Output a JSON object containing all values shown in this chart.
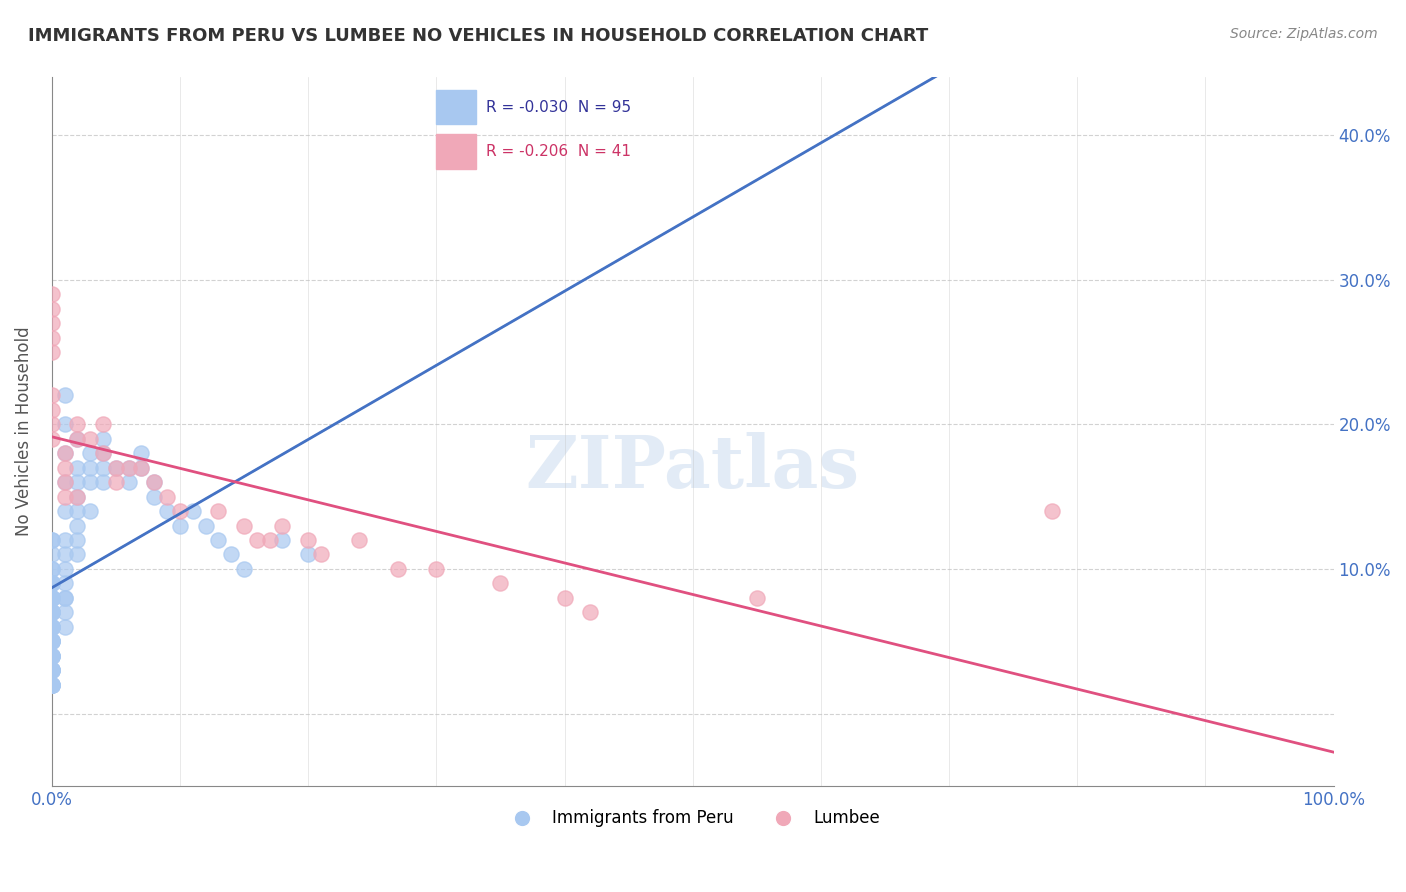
{
  "title": "IMMIGRANTS FROM PERU VS LUMBEE NO VEHICLES IN HOUSEHOLD CORRELATION CHART",
  "source": "Source: ZipAtlas.com",
  "ylabel": "No Vehicles in Household",
  "xlabel": "",
  "xlim": [
    0.0,
    1.0
  ],
  "ylim": [
    -0.05,
    0.44
  ],
  "yticks": [
    0.0,
    0.1,
    0.2,
    0.3,
    0.4
  ],
  "ytick_labels": [
    "",
    "10.0%",
    "20.0%",
    "30.0%",
    "40.0%"
  ],
  "xticks": [
    0.0,
    0.1,
    0.2,
    0.3,
    0.4,
    0.5,
    0.6,
    0.7,
    0.8,
    0.9,
    1.0
  ],
  "xtick_labels": [
    "0.0%",
    "",
    "",
    "",
    "",
    "",
    "",
    "",
    "",
    "",
    "100.0%"
  ],
  "legend_r1": "R = -0.030  N = 95",
  "legend_r2": "R = -0.206  N = 41",
  "series1_color": "#a8c8f0",
  "series2_color": "#f0a8b8",
  "series1_label": "Immigrants from Peru",
  "series2_label": "Lumbee",
  "trendline1_color": "#4472c4",
  "trendline2_color": "#e05080",
  "trendline1_dashed_color": "#a0c0e8",
  "background_color": "#ffffff",
  "watermark": "ZIPatlas",
  "peru_x": [
    0.0,
    0.0,
    0.0,
    0.0,
    0.0,
    0.0,
    0.0,
    0.0,
    0.0,
    0.0,
    0.0,
    0.0,
    0.0,
    0.0,
    0.0,
    0.0,
    0.0,
    0.0,
    0.0,
    0.0,
    0.0,
    0.0,
    0.0,
    0.0,
    0.0,
    0.0,
    0.0,
    0.0,
    0.0,
    0.0,
    0.0,
    0.0,
    0.0,
    0.0,
    0.0,
    0.0,
    0.0,
    0.0,
    0.0,
    0.0,
    0.0,
    0.0,
    0.0,
    0.0,
    0.0,
    0.0,
    0.0,
    0.0,
    0.0,
    0.0,
    0.01,
    0.01,
    0.01,
    0.01,
    0.01,
    0.01,
    0.01,
    0.01,
    0.01,
    0.01,
    0.01,
    0.01,
    0.01,
    0.02,
    0.02,
    0.02,
    0.02,
    0.02,
    0.02,
    0.02,
    0.02,
    0.03,
    0.03,
    0.03,
    0.03,
    0.04,
    0.04,
    0.04,
    0.04,
    0.05,
    0.06,
    0.06,
    0.07,
    0.07,
    0.08,
    0.08,
    0.09,
    0.1,
    0.11,
    0.12,
    0.13,
    0.14,
    0.15,
    0.18,
    0.2
  ],
  "peru_y": [
    0.12,
    0.12,
    0.11,
    0.1,
    0.1,
    0.09,
    0.09,
    0.09,
    0.09,
    0.09,
    0.08,
    0.08,
    0.08,
    0.08,
    0.08,
    0.08,
    0.08,
    0.07,
    0.07,
    0.07,
    0.07,
    0.07,
    0.07,
    0.06,
    0.06,
    0.06,
    0.06,
    0.06,
    0.05,
    0.05,
    0.05,
    0.05,
    0.05,
    0.04,
    0.04,
    0.04,
    0.04,
    0.04,
    0.03,
    0.03,
    0.03,
    0.03,
    0.03,
    0.03,
    0.02,
    0.02,
    0.02,
    0.02,
    0.02,
    0.02,
    0.22,
    0.2,
    0.18,
    0.16,
    0.14,
    0.12,
    0.11,
    0.1,
    0.09,
    0.08,
    0.08,
    0.07,
    0.06,
    0.19,
    0.17,
    0.16,
    0.15,
    0.14,
    0.13,
    0.12,
    0.11,
    0.18,
    0.17,
    0.16,
    0.14,
    0.19,
    0.18,
    0.17,
    0.16,
    0.17,
    0.17,
    0.16,
    0.18,
    0.17,
    0.16,
    0.15,
    0.14,
    0.13,
    0.14,
    0.13,
    0.12,
    0.11,
    0.1,
    0.12,
    0.11
  ],
  "lumbee_x": [
    0.0,
    0.0,
    0.0,
    0.0,
    0.0,
    0.0,
    0.0,
    0.0,
    0.0,
    0.01,
    0.01,
    0.01,
    0.01,
    0.02,
    0.02,
    0.02,
    0.03,
    0.04,
    0.04,
    0.05,
    0.05,
    0.06,
    0.07,
    0.08,
    0.09,
    0.1,
    0.13,
    0.15,
    0.16,
    0.17,
    0.18,
    0.2,
    0.21,
    0.24,
    0.27,
    0.3,
    0.35,
    0.4,
    0.42,
    0.55,
    0.78
  ],
  "lumbee_y": [
    0.29,
    0.28,
    0.27,
    0.26,
    0.25,
    0.22,
    0.21,
    0.2,
    0.19,
    0.18,
    0.17,
    0.16,
    0.15,
    0.2,
    0.19,
    0.15,
    0.19,
    0.2,
    0.18,
    0.17,
    0.16,
    0.17,
    0.17,
    0.16,
    0.15,
    0.14,
    0.14,
    0.13,
    0.12,
    0.12,
    0.13,
    0.12,
    0.11,
    0.12,
    0.1,
    0.1,
    0.09,
    0.08,
    0.07,
    0.08,
    0.14
  ]
}
